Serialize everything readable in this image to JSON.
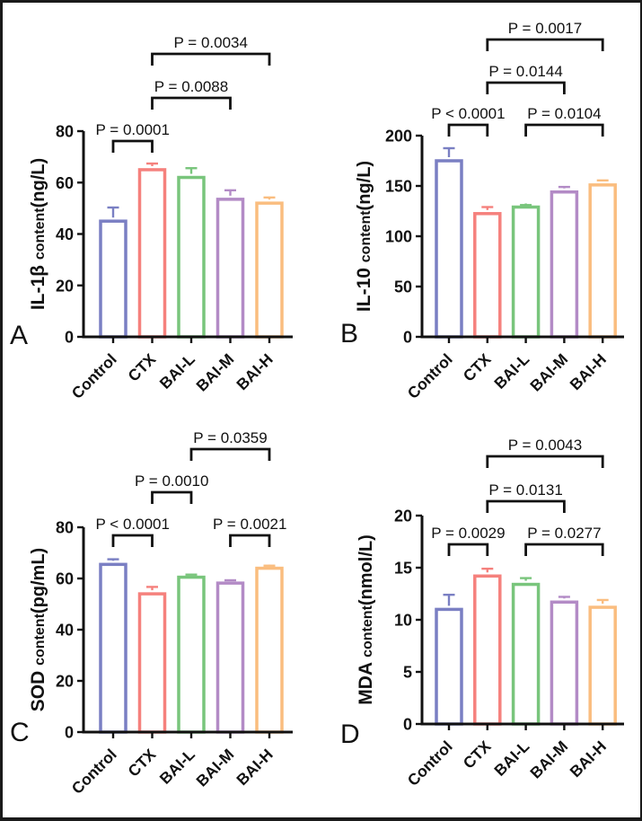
{
  "figure": {
    "background": "#ffffff",
    "frame_color": "#1a1a1a",
    "axis_color": "#111111"
  },
  "chart_data": [
    {
      "type": "bar",
      "panel_label": "A",
      "ylabel_full": "IL-1β content(ng/L)",
      "ylabel": {
        "name": "IL-1β",
        "descriptor": "content",
        "unit": "(ng/L)"
      },
      "categories": [
        "Control",
        "CTX",
        "BAI-L",
        "BAI-M",
        "BAI-H"
      ],
      "values": [
        45,
        65,
        62,
        53.5,
        52
      ],
      "errors": [
        5.3,
        2.4,
        3.6,
        3.5,
        2.2
      ],
      "ylim": [
        0,
        80
      ],
      "yticks": [
        0,
        20,
        40,
        60,
        80
      ],
      "colors": [
        "#7a7fc3",
        "#f5817d",
        "#79c57c",
        "#b38bc6",
        "#fabd7f"
      ],
      "significance": [
        {
          "label": "P = 0.0001",
          "from": 0,
          "to": 1,
          "row": 0
        },
        {
          "label": "P = 0.0088",
          "from": 1,
          "to": 3,
          "row": 1
        },
        {
          "label": "P = 0.0034",
          "from": 1,
          "to": 4,
          "row": 2
        }
      ]
    },
    {
      "type": "bar",
      "panel_label": "B",
      "ylabel_full": "IL-10 content(ng/L)",
      "ylabel": {
        "name": "IL-10",
        "descriptor": "content",
        "unit": "(ng/L)"
      },
      "categories": [
        "Control",
        "CTX",
        "BAI-L",
        "BAI-M",
        "BAI-H"
      ],
      "values": [
        175,
        122.5,
        129,
        144,
        151
      ],
      "errors": [
        12.5,
        6.5,
        2,
        5,
        4.5
      ],
      "ylim": [
        0,
        200
      ],
      "yticks": [
        0,
        50,
        100,
        150,
        200
      ],
      "colors": [
        "#7a7fc3",
        "#f5817d",
        "#79c57c",
        "#b38bc6",
        "#fabd7f"
      ],
      "significance": [
        {
          "label": "P < 0.0001",
          "from": 0,
          "to": 1,
          "row": 0
        },
        {
          "label": "P = 0.0104",
          "from": 2,
          "to": 4,
          "row": 0
        },
        {
          "label": "P = 0.0144",
          "from": 1,
          "to": 3,
          "row": 1
        },
        {
          "label": "P = 0.0017",
          "from": 1,
          "to": 4,
          "row": 2
        }
      ]
    },
    {
      "type": "bar",
      "panel_label": "C",
      "ylabel_full": "SOD content(pg/mL)",
      "ylabel": {
        "name": "SOD",
        "descriptor": "content",
        "unit": "(pg/mL)"
      },
      "categories": [
        "Control",
        "CTX",
        "BAI-L",
        "BAI-M",
        "BAI-H"
      ],
      "values": [
        65.5,
        54,
        60.5,
        58.2,
        64
      ],
      "errors": [
        2,
        2.7,
        1,
        1.1,
        1
      ],
      "ylim": [
        0,
        80
      ],
      "yticks": [
        0,
        20,
        40,
        60,
        80
      ],
      "colors": [
        "#7a7fc3",
        "#f5817d",
        "#79c57c",
        "#b38bc6",
        "#fabd7f"
      ],
      "significance": [
        {
          "label": "P < 0.0001",
          "from": 0,
          "to": 1,
          "row": 0
        },
        {
          "label": "P = 0.0021",
          "from": 3,
          "to": 4,
          "row": 0
        },
        {
          "label": "P = 0.0010",
          "from": 1,
          "to": 2,
          "row": 1
        },
        {
          "label": "P = 0.0359",
          "from": 2,
          "to": 4,
          "row": 2
        }
      ]
    },
    {
      "type": "bar",
      "panel_label": "D",
      "ylabel_full": "MDA content(nmol/L)",
      "ylabel": {
        "name": "MDA",
        "descriptor": "content",
        "unit": "(nmol/L)"
      },
      "categories": [
        "Control",
        "CTX",
        "BAI-L",
        "BAI-M",
        "BAI-H"
      ],
      "values": [
        11,
        14.2,
        13.4,
        11.7,
        11.2
      ],
      "errors": [
        1.4,
        0.7,
        0.6,
        0.5,
        0.7
      ],
      "ylim": [
        0,
        20
      ],
      "yticks": [
        0,
        5,
        10,
        15,
        20
      ],
      "colors": [
        "#7a7fc3",
        "#f5817d",
        "#79c57c",
        "#b38bc6",
        "#fabd7f"
      ],
      "significance": [
        {
          "label": "P = 0.0029",
          "from": 0,
          "to": 1,
          "row": 0
        },
        {
          "label": "P = 0.0277",
          "from": 2,
          "to": 4,
          "row": 0
        },
        {
          "label": "P = 0.0131",
          "from": 1,
          "to": 3,
          "row": 1
        },
        {
          "label": "P = 0.0043",
          "from": 1,
          "to": 4,
          "row": 2
        }
      ]
    }
  ]
}
